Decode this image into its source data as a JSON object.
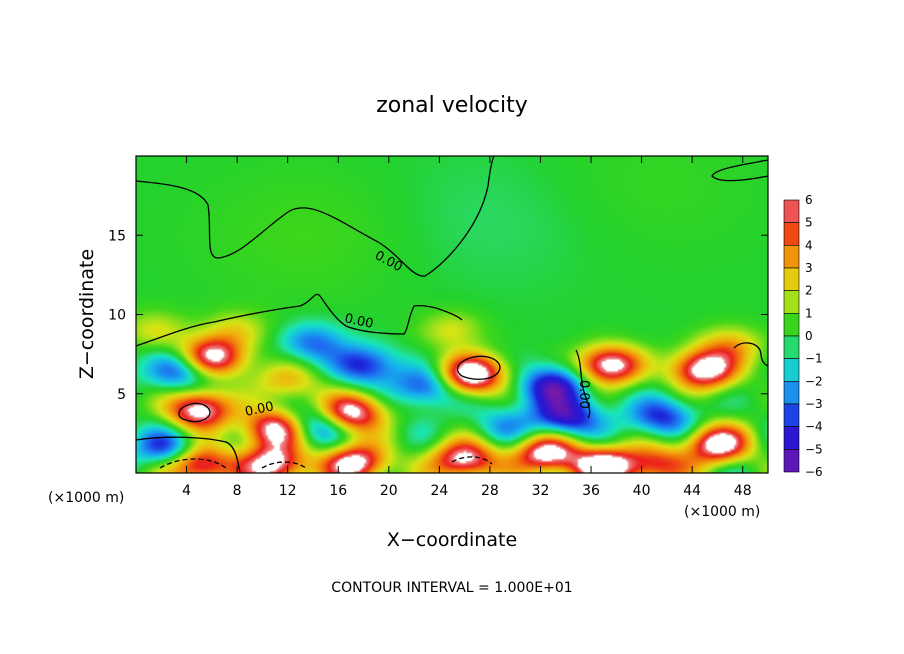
{
  "chart_data": {
    "type": "heatmap",
    "title": "zonal velocity",
    "xlabel": "X−coordinate",
    "ylabel": "Z−coordinate",
    "x_unit_label_left": "(×1000 m)",
    "x_unit_label_right": "(×1000 m)",
    "note": "CONTOUR INTERVAL = 1.000E+01",
    "xlim": [
      0,
      50
    ],
    "ylim": [
      0,
      20
    ],
    "x_ticks": [
      "4",
      "8",
      "12",
      "16",
      "20",
      "24",
      "28",
      "32",
      "36",
      "40",
      "44",
      "48"
    ],
    "y_ticks": [
      "5",
      "10",
      "15"
    ],
    "colorbar": {
      "min": -6,
      "max": 6,
      "ticks": [
        "6",
        "5",
        "4",
        "3",
        "2",
        "1",
        "0",
        "−1",
        "−2",
        "−3",
        "−4",
        "−5",
        "−6"
      ]
    },
    "contour_labels": [
      "0.00",
      "0.00",
      "0.00",
      "0.00"
    ],
    "features": [
      {
        "x": 5,
        "z": 4,
        "u": 7
      },
      {
        "x": 5,
        "z": 0.5,
        "u": 7
      },
      {
        "x": 11,
        "z": 0.5,
        "u": 7
      },
      {
        "x": 11,
        "z": 2.8,
        "u": 7
      },
      {
        "x": 17,
        "z": 3.8,
        "u": 7
      },
      {
        "x": 17.5,
        "z": 0.6,
        "u": 7
      },
      {
        "x": 26.5,
        "z": 6.2,
        "u": 8
      },
      {
        "x": 26,
        "z": 0.8,
        "u": 7
      },
      {
        "x": 32.5,
        "z": 1.2,
        "u": 7
      },
      {
        "x": 37.5,
        "z": 6.8,
        "u": 7
      },
      {
        "x": 45,
        "z": 6.5,
        "u": 7
      },
      {
        "x": 46,
        "z": 1.8,
        "u": 7
      },
      {
        "x": 6,
        "z": 7.3,
        "u": 7
      },
      {
        "x": 37,
        "z": 0.4,
        "u": 7
      },
      {
        "x": 41,
        "z": 0.5,
        "u": 5
      },
      {
        "x": 3.5,
        "z": 6.5,
        "u": -4
      },
      {
        "x": 2.5,
        "z": 1.5,
        "u": -4
      },
      {
        "x": 14,
        "z": 8.2,
        "u": -3
      },
      {
        "x": 18,
        "z": 6.8,
        "u": -4
      },
      {
        "x": 23,
        "z": 5.5,
        "u": -4
      },
      {
        "x": 33,
        "z": 5.5,
        "u": -5
      },
      {
        "x": 34,
        "z": 3.5,
        "u": -5
      },
      {
        "x": 41.5,
        "z": 3.5,
        "u": -4
      },
      {
        "x": 14,
        "z": 3,
        "u": -4
      },
      {
        "x": 29,
        "z": 3,
        "u": -2
      },
      {
        "x": 1.5,
        "z": 9,
        "u": 2
      },
      {
        "x": 8,
        "z": 9,
        "u": 2
      },
      {
        "x": 25,
        "z": 9,
        "u": 2
      },
      {
        "x": 47,
        "z": 8,
        "u": 3
      },
      {
        "x": 12,
        "z": 5.8,
        "u": 3
      },
      {
        "x": 14,
        "z": 15,
        "u": 0.6
      },
      {
        "x": 28,
        "z": 16,
        "u": -0.5
      },
      {
        "x": 40,
        "z": 18,
        "u": 0.4
      }
    ]
  }
}
